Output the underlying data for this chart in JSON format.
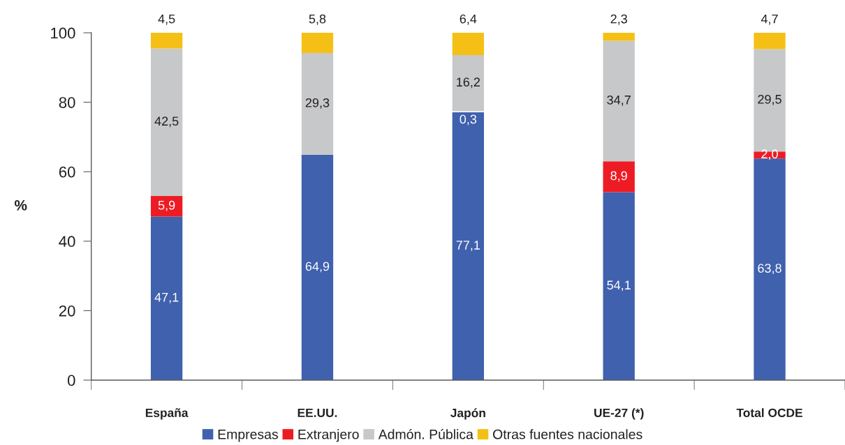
{
  "chart_data": {
    "type": "bar",
    "stacked": true,
    "ylabel": "%",
    "categories": [
      "España",
      "EE.UU.",
      "Japón",
      "UE-27 (*)",
      "Total OCDE"
    ],
    "series": [
      {
        "name": "Empresas",
        "color": "#4061ad",
        "values": [
          47.1,
          64.9,
          77.1,
          54.1,
          63.8
        ],
        "value_labels": [
          "47,1",
          "64,9",
          "77,1",
          "54,1",
          "63,8"
        ]
      },
      {
        "name": "Extranjero",
        "color": "#ed1c24",
        "colors": [
          "#ed1c24",
          "#ed1c24",
          "#ffffff",
          "#ed1c24",
          "#ed1c24"
        ],
        "values": [
          5.9,
          null,
          0.3,
          8.9,
          2.0
        ],
        "value_labels": [
          "5,9",
          null,
          "0,3",
          "8,9",
          "2,0"
        ]
      },
      {
        "name": "Admón. Pública",
        "color": "#c7c8ca",
        "values": [
          42.5,
          29.3,
          16.2,
          34.7,
          29.5
        ],
        "value_labels": [
          "42,5",
          "29,3",
          "16,2",
          "34,7",
          "29,5"
        ]
      },
      {
        "name": "Otras fuentes nacionales",
        "color": "#f5c016",
        "values": [
          4.5,
          5.8,
          6.4,
          2.3,
          4.7
        ],
        "value_labels": [
          "4,5",
          "5,8",
          "6,4",
          "2,3",
          "4,7"
        ]
      }
    ],
    "ylim": [
      0,
      100
    ],
    "yticks": [
      0,
      20,
      40,
      60,
      80,
      100
    ],
    "grid": false,
    "legend": "bottom"
  }
}
